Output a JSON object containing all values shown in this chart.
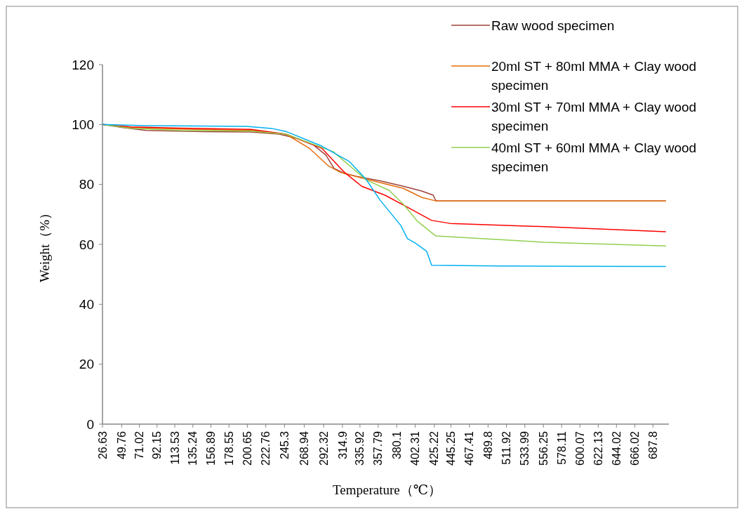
{
  "chart_data": {
    "type": "line",
    "xlabel": "Temperature（℃）",
    "ylabel": "Weight（%）",
    "ylim": [
      0,
      120
    ],
    "yticks": [
      0,
      20,
      40,
      60,
      80,
      100,
      120
    ],
    "xlim": [
      26.63,
      707
    ],
    "xticks": [
      26.63,
      49.76,
      71.02,
      92.15,
      113.53,
      135.24,
      156.89,
      178.55,
      200.65,
      222.76,
      245.3,
      268.94,
      292.32,
      314.9,
      335.92,
      357.79,
      380.1,
      402.31,
      425.22,
      445.25,
      467.41,
      489.8,
      511.92,
      533.99,
      556.25,
      578.11,
      600.07,
      622.13,
      644.02,
      666.02,
      687.8
    ],
    "grid": false,
    "legend": "top right",
    "marker": "none",
    "line_style": "solid",
    "series": [
      {
        "name": "Raw wood specimen",
        "color": "#a0403a",
        "x": [
          26.63,
          50,
          79,
          150,
          205,
          239,
          260,
          280,
          295,
          305,
          318,
          332,
          360,
          388,
          410,
          424,
          427,
          430,
          500,
          600,
          703
        ],
        "values": [
          100,
          99,
          98,
          97.6,
          97.5,
          96.8,
          95.4,
          93.2,
          89.8,
          85.3,
          83.6,
          82.7,
          81.2,
          79.4,
          77.8,
          76.4,
          74.6,
          74.5,
          74.5,
          74.5,
          74.5
        ]
      },
      {
        "name": "20ml ST + 80ml MMA + Clay wood specimen",
        "color": "#e46c0a",
        "x": [
          26.63,
          60,
          120,
          205,
          247,
          275,
          298,
          312,
          343,
          388,
          410,
          427,
          500,
          600,
          703
        ],
        "values": [
          100,
          99,
          98.5,
          98,
          96.8,
          92.1,
          86.2,
          84.1,
          81.8,
          78.7,
          75.7,
          74.5,
          74.5,
          74.5,
          74.5
        ]
      },
      {
        "name": "30ml ST + 70ml MMA + Clay wood specimen",
        "color": "#ff0000",
        "x": [
          26.63,
          60,
          120,
          205,
          247,
          290,
          317,
          338,
          366,
          393,
          422,
          444,
          557,
          703
        ],
        "values": [
          100,
          99.2,
          98.8,
          98.4,
          96.8,
          92.1,
          84.1,
          79.4,
          76.4,
          72.4,
          68,
          67,
          65.9,
          64.2
        ]
      },
      {
        "name": "40ml ST + 60ml MMA + Clay wood specimen",
        "color": "#92d050",
        "x": [
          26.63,
          60,
          120,
          205,
          247,
          304,
          343,
          371,
          388,
          405,
          427,
          557,
          703
        ],
        "values": [
          100,
          98.8,
          98,
          97.8,
          96.8,
          90.9,
          81.6,
          78,
          73.4,
          67.7,
          62.8,
          60.7,
          59.5
        ]
      },
      {
        "color": "#00b0f0",
        "x": [
          26.63,
          80,
          200,
          230,
          247,
          290,
          323,
          343,
          360,
          385,
          393,
          402,
          416,
          422,
          500,
          600,
          703
        ],
        "values": [
          100,
          99.6,
          99.4,
          98.7,
          97.7,
          92.8,
          87.7,
          81.8,
          74.8,
          66.3,
          61.9,
          60.5,
          57.7,
          53,
          52.8,
          52.7,
          52.6
        ]
      }
    ]
  }
}
